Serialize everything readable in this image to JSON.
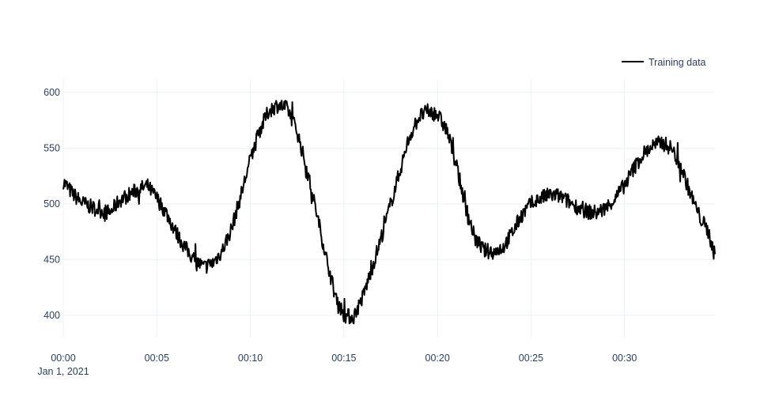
{
  "chart_data": {
    "type": "line",
    "title": "",
    "xlabel": "",
    "ylabel": "",
    "x_axis": {
      "type": "date",
      "start": "2021-01-01 00:00",
      "end": "2021-01-01 00:34:50",
      "ticks": [
        "00:00",
        "00:05",
        "00:10",
        "00:15",
        "00:20",
        "00:25",
        "00:30"
      ],
      "first_tick_date_label": "Jan 1, 2021"
    },
    "y_axis": {
      "range": [
        380,
        612
      ],
      "ticks": [
        "400",
        "450",
        "500",
        "550",
        "600"
      ]
    },
    "grid": true,
    "legend": {
      "position": "top-right"
    },
    "series": [
      {
        "name": "Training data",
        "color": "#000000",
        "x_minutes": [
          0,
          0.5,
          1,
          1.5,
          2,
          2.5,
          3,
          3.5,
          4,
          4.5,
          5,
          5.5,
          6,
          6.5,
          7,
          7.5,
          8,
          8.5,
          9,
          9.5,
          10,
          10.5,
          11,
          11.5,
          12,
          12.5,
          13,
          13.5,
          14,
          14.5,
          15,
          15.5,
          16,
          16.5,
          17,
          17.5,
          18,
          18.5,
          19,
          19.5,
          20,
          20.5,
          21,
          21.5,
          22,
          22.5,
          23,
          23.5,
          24,
          24.5,
          25,
          25.5,
          26,
          26.5,
          27,
          27.5,
          28,
          28.5,
          29,
          29.5,
          30,
          30.5,
          31,
          31.5,
          32,
          32.5,
          33,
          33.5,
          34,
          34.5,
          34.8
        ],
        "y": [
          520,
          509,
          501,
          497,
          494,
          492,
          503,
          508,
          513,
          516,
          505,
          492,
          475,
          461,
          450,
          443,
          447,
          458,
          478,
          508,
          540,
          566,
          584,
          589,
          585,
          565,
          532,
          495,
          456,
          420,
          400,
          398,
          416,
          442,
          470,
          500,
          530,
          560,
          578,
          583,
          580,
          566,
          535,
          498,
          469,
          458,
          457,
          461,
          474,
          490,
          500,
          505,
          508,
          507,
          502,
          497,
          493,
          492,
          496,
          505,
          517,
          532,
          545,
          552,
          555,
          550,
          534,
          510,
          489,
          474,
          455
        ],
        "noise_amplitude": 7
      }
    ]
  }
}
